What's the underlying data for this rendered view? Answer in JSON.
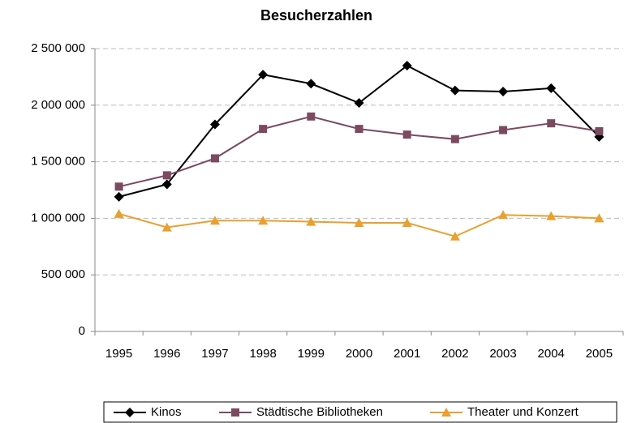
{
  "chart_data": {
    "type": "line",
    "title": "Besucherzahlen",
    "categories": [
      "1995",
      "1996",
      "1997",
      "1998",
      "1999",
      "2000",
      "2001",
      "2002",
      "2003",
      "2004",
      "2005"
    ],
    "series": [
      {
        "name": "Kinos",
        "color": "#000000",
        "marker": "diamond",
        "values": [
          1190000,
          1300000,
          1830000,
          2270000,
          2190000,
          2020000,
          2350000,
          2130000,
          2120000,
          2150000,
          1720000
        ]
      },
      {
        "name": "Städtische Bibliotheken",
        "color": "#7b4a60",
        "marker": "square",
        "values": [
          1280000,
          1380000,
          1530000,
          1790000,
          1900000,
          1790000,
          1740000,
          1700000,
          1780000,
          1840000,
          1770000
        ]
      },
      {
        "name": "Theater und Konzert",
        "color": "#e8a030",
        "marker": "triangle",
        "values": [
          1040000,
          920000,
          980000,
          980000,
          970000,
          960000,
          960000,
          840000,
          1030000,
          1020000,
          1000000
        ]
      }
    ],
    "ylim": [
      0,
      2500000
    ],
    "yticks": [
      0,
      {
        "value": 500000,
        "label": "500 000"
      },
      {
        "value": 1000000,
        "label": "1 000 000"
      },
      {
        "value": 1500000,
        "label": "1 500 000"
      },
      {
        "value": 2000000,
        "label": "2 000 000"
      },
      {
        "value": 2500000,
        "label": "2 500 000"
      }
    ],
    "grid": true,
    "legend": "bottom"
  }
}
